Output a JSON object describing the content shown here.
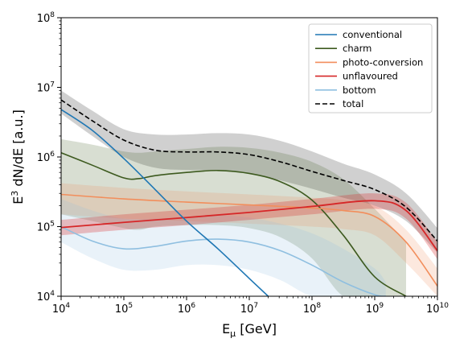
{
  "chart_data": {
    "type": "line",
    "xlabel": "E_μ [GeV]",
    "ylabel": "E³ dN/dE [a.u.]",
    "x_scale": "log",
    "y_scale": "log",
    "xlim": [
      10000,
      10000000000
    ],
    "ylim": [
      10000,
      100000000
    ],
    "grid": false,
    "legend_position": "top-right",
    "x_ticks": [
      {
        "base": "10",
        "exp": "4",
        "value": 10000
      },
      {
        "base": "10",
        "exp": "5",
        "value": 100000
      },
      {
        "base": "10",
        "exp": "6",
        "value": 1000000
      },
      {
        "base": "10",
        "exp": "7",
        "value": 10000000
      },
      {
        "base": "10",
        "exp": "8",
        "value": 100000000
      },
      {
        "base": "10",
        "exp": "9",
        "value": 1000000000
      },
      {
        "base": "10",
        "exp": "10",
        "value": 10000000000
      }
    ],
    "y_ticks": [
      {
        "base": "10",
        "exp": "4",
        "value": 10000
      },
      {
        "base": "10",
        "exp": "5",
        "value": 100000
      },
      {
        "base": "10",
        "exp": "6",
        "value": 1000000
      },
      {
        "base": "10",
        "exp": "7",
        "value": 10000000
      },
      {
        "base": "10",
        "exp": "8",
        "value": 100000000
      }
    ],
    "series": [
      {
        "name": "conventional",
        "color": "#1f77b4",
        "style": "solid",
        "x": [
          10000,
          31623,
          100000,
          316228,
          1000000,
          3162278,
          10000000,
          20000000
        ],
        "y": [
          4800000,
          2400000,
          950000,
          340000,
          120000,
          48000,
          18000,
          10000
        ]
      },
      {
        "name": "charm",
        "color": "#3d5a1f",
        "style": "solid",
        "x": [
          10000,
          31623,
          100000,
          177828,
          316228,
          1000000,
          3162278,
          10000000,
          31622777,
          100000000,
          316227766,
          1000000000,
          2238721,
          3162277660
        ],
        "y": [
          1150000,
          760000,
          500000,
          490000,
          540000,
          600000,
          640000,
          580000,
          440000,
          240000,
          75000,
          19000,
          0,
          10000
        ],
        "band_lower": [
          150000,
          120000,
          95000,
          90000,
          100000,
          105000,
          105000,
          95000,
          70000,
          35000,
          10000,
          10000,
          0,
          10000
        ],
        "band_upper": [
          1800000,
          1500000,
          1200000,
          1150000,
          1200000,
          1300000,
          1400000,
          1350000,
          1150000,
          850000,
          480000,
          180000,
          0,
          60000
        ]
      },
      {
        "name": "photo-conversion",
        "color": "#f28e5c",
        "style": "solid",
        "x": [
          10000,
          100000,
          1000000,
          10000000,
          100000000,
          316227766,
          1000000000,
          3162277660,
          10000000000
        ],
        "y": [
          290000,
          250000,
          225000,
          205000,
          185000,
          170000,
          140000,
          60000,
          14000
        ],
        "band_lower": [
          150000,
          130000,
          120000,
          110000,
          100000,
          92000,
          75000,
          30000,
          10000
        ],
        "band_upper": [
          420000,
          360000,
          320000,
          290000,
          260000,
          240000,
          200000,
          90000,
          25000
        ]
      },
      {
        "name": "unflavoured",
        "color": "#d62728",
        "style": "solid",
        "x": [
          10000,
          100000,
          1000000,
          10000000,
          100000000,
          1000000000,
          3162277660,
          10000000000
        ],
        "y": [
          97000,
          115000,
          135000,
          160000,
          195000,
          235000,
          170000,
          45000
        ],
        "band_lower": [
          75000,
          90000,
          105000,
          125000,
          150000,
          180000,
          130000,
          34000
        ],
        "band_upper": [
          125000,
          150000,
          175000,
          205000,
          250000,
          300000,
          220000,
          60000
        ]
      },
      {
        "name": "bottom",
        "color": "#8fbfe0",
        "style": "solid",
        "x": [
          10000,
          31623,
          100000,
          316228,
          1000000,
          3162278,
          10000000,
          31622777,
          100000000,
          316227766,
          1000000000,
          1500000000
        ],
        "y": [
          100000,
          62000,
          48000,
          52000,
          62000,
          66000,
          60000,
          45000,
          28000,
          16000,
          10500,
          10000
        ],
        "band_lower": [
          60000,
          35000,
          24000,
          24000,
          28000,
          28000,
          24000,
          17000,
          10000,
          10000,
          10000,
          10000
        ],
        "band_upper": [
          250000,
          170000,
          130000,
          130000,
          140000,
          145000,
          135000,
          110000,
          80000,
          48000,
          25000,
          16000
        ]
      },
      {
        "name": "total",
        "color": "#000000",
        "style": "dashed",
        "x": [
          10000,
          31623,
          100000,
          316228,
          1000000,
          3162278,
          10000000,
          31622777,
          100000000,
          316227766,
          1000000000,
          3162277660,
          10000000000
        ],
        "y": [
          6600000,
          3300000,
          1750000,
          1250000,
          1180000,
          1180000,
          1080000,
          850000,
          620000,
          460000,
          340000,
          190000,
          62000
        ],
        "band_lower": [
          4200000,
          2000000,
          1000000,
          700000,
          650000,
          640000,
          580000,
          460000,
          350000,
          260000,
          200000,
          120000,
          42000
        ],
        "band_upper": [
          9000000,
          4600000,
          2500000,
          2100000,
          2100000,
          2200000,
          2100000,
          1700000,
          1200000,
          800000,
          560000,
          300000,
          95000
        ]
      }
    ]
  }
}
